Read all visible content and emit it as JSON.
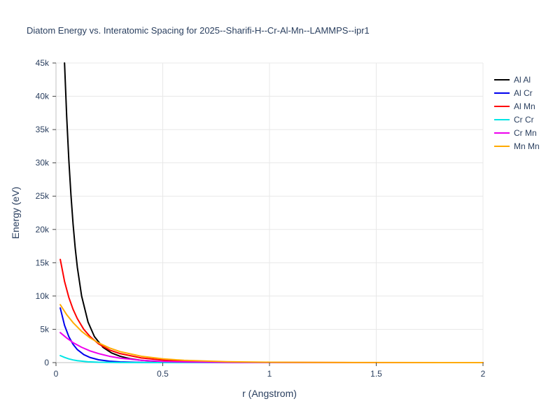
{
  "title": "Diatom Energy vs. Interatomic Spacing for 2025--Sharifi-H--Cr-Al-Mn--LAMMPS--ipr1",
  "colors": {
    "text": "#2a3f5f",
    "grid": "#e8e8e8",
    "zeroline": "#c0c0c0",
    "tick": "#444444",
    "background": "#ffffff"
  },
  "chart_data": {
    "type": "line",
    "title": "Diatom Energy vs. Interatomic Spacing for 2025--Sharifi-H--Cr-Al-Mn--LAMMPS--ipr1",
    "xlabel": "r (Angstrom)",
    "ylabel": "Energy (eV)",
    "xlim": [
      0,
      2
    ],
    "ylim": [
      0,
      45000
    ],
    "xticks": [
      0,
      0.5,
      1,
      1.5,
      2
    ],
    "xtick_labels": [
      "0",
      "0.5",
      "1",
      "1.5",
      "2"
    ],
    "yticks": [
      0,
      5000,
      10000,
      15000,
      20000,
      25000,
      30000,
      35000,
      40000,
      45000
    ],
    "ytick_labels": [
      "0",
      "5k",
      "10k",
      "15k",
      "20k",
      "25k",
      "30k",
      "35k",
      "40k",
      "45k"
    ],
    "grid": true,
    "legend_position": "right",
    "series": [
      {
        "name": "Al Al",
        "color": "#000000",
        "x": [
          0.04,
          0.05,
          0.06,
          0.07,
          0.08,
          0.09,
          0.1,
          0.12,
          0.15,
          0.18,
          0.22,
          0.26,
          0.3,
          0.35,
          0.4,
          0.5,
          0.6,
          0.8,
          1.0,
          1.5,
          2.0
        ],
        "y": [
          45000,
          37000,
          30500,
          25200,
          20800,
          17200,
          14300,
          10000,
          6100,
          3900,
          2300,
          1450,
          950,
          560,
          340,
          130,
          50,
          10,
          2,
          0,
          0
        ]
      },
      {
        "name": "Al Cr",
        "color": "#0000ee",
        "x": [
          0.02,
          0.04,
          0.06,
          0.08,
          0.1,
          0.13,
          0.16,
          0.2,
          0.25,
          0.3,
          0.4,
          0.5,
          0.7,
          1.0,
          1.5,
          2.0
        ],
        "y": [
          8200,
          5600,
          3900,
          2750,
          1950,
          1200,
          760,
          420,
          210,
          110,
          32,
          10,
          1,
          0,
          0,
          0
        ]
      },
      {
        "name": "Al Mn",
        "color": "#ff0000",
        "x": [
          0.02,
          0.04,
          0.06,
          0.08,
          0.1,
          0.13,
          0.16,
          0.2,
          0.25,
          0.3,
          0.4,
          0.5,
          0.6,
          0.8,
          1.0,
          1.2,
          1.5,
          2.0
        ],
        "y": [
          15500,
          12200,
          9800,
          8000,
          6600,
          5000,
          3900,
          2800,
          1900,
          1350,
          700,
          380,
          210,
          70,
          25,
          8,
          2,
          0
        ]
      },
      {
        "name": "Cr Cr",
        "color": "#00e5e5",
        "x": [
          0.02,
          0.04,
          0.06,
          0.08,
          0.1,
          0.15,
          0.2,
          0.3,
          0.5,
          1.0,
          2.0
        ],
        "y": [
          1050,
          780,
          560,
          400,
          290,
          120,
          50,
          10,
          0,
          0,
          0
        ]
      },
      {
        "name": "Cr Mn",
        "color": "#ee00ee",
        "x": [
          0.02,
          0.05,
          0.08,
          0.12,
          0.16,
          0.2,
          0.25,
          0.3,
          0.4,
          0.5,
          0.6,
          0.8,
          1.0,
          1.5,
          2.0
        ],
        "y": [
          4500,
          3700,
          3000,
          2300,
          1750,
          1350,
          950,
          670,
          340,
          170,
          90,
          25,
          8,
          0,
          0
        ]
      },
      {
        "name": "Mn Mn",
        "color": "#ffaa00",
        "x": [
          0.02,
          0.05,
          0.08,
          0.12,
          0.16,
          0.2,
          0.25,
          0.3,
          0.4,
          0.5,
          0.6,
          0.8,
          1.0,
          1.2,
          1.5,
          2.0
        ],
        "y": [
          8700,
          7200,
          6000,
          4700,
          3700,
          2950,
          2200,
          1650,
          950,
          560,
          340,
          130,
          55,
          25,
          8,
          1
        ]
      }
    ]
  }
}
